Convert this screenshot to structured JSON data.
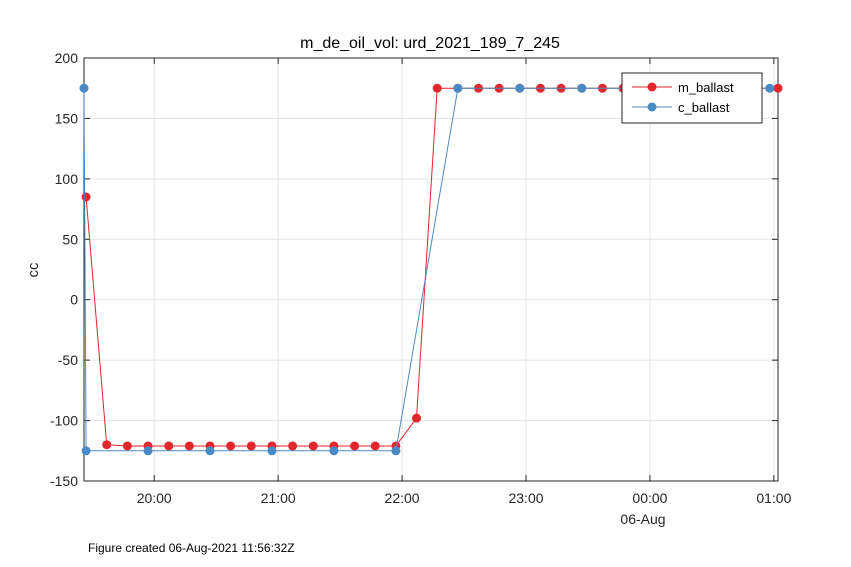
{
  "chart_data": {
    "type": "line",
    "title": "m_de_oil_vol: urd_2021_189_7_245",
    "ylabel": "cc",
    "xlabel": "",
    "ylim": [
      -150,
      200
    ],
    "yticks": [
      -150,
      -100,
      -50,
      0,
      50,
      100,
      150,
      200
    ],
    "xlim": [
      "19:26",
      "01:02"
    ],
    "xticks": [
      {
        "time": "20:00",
        "label": "20:00"
      },
      {
        "time": "21:00",
        "label": "21:00"
      },
      {
        "time": "22:00",
        "label": "22:00"
      },
      {
        "time": "23:00",
        "label": "23:00"
      },
      {
        "time": "00:00",
        "label": "00:00"
      },
      {
        "time": "01:00",
        "label": "01:00"
      }
    ],
    "date_label": "06-Aug",
    "grid": true,
    "legend_position": "top-right",
    "series": [
      {
        "name": "m_ballast",
        "color": "#e3262b",
        "points": [
          [
            "19:27",
            85
          ],
          [
            "19:37",
            -120
          ],
          [
            "19:47",
            -121
          ],
          [
            "19:57",
            -121
          ],
          [
            "20:07",
            -121
          ],
          [
            "20:17",
            -121
          ],
          [
            "20:27",
            -121
          ],
          [
            "20:37",
            -121
          ],
          [
            "20:47",
            -121
          ],
          [
            "20:57",
            -121
          ],
          [
            "21:07",
            -121
          ],
          [
            "21:17",
            -121
          ],
          [
            "21:27",
            -121
          ],
          [
            "21:37",
            -121
          ],
          [
            "21:47",
            -121
          ],
          [
            "21:57",
            -121
          ],
          [
            "22:07",
            -98
          ],
          [
            "22:17",
            175
          ],
          [
            "22:27",
            175
          ],
          [
            "22:37",
            175
          ],
          [
            "22:47",
            175
          ],
          [
            "22:57",
            175
          ],
          [
            "23:07",
            175
          ],
          [
            "23:17",
            175
          ],
          [
            "23:27",
            175
          ],
          [
            "23:37",
            175
          ],
          [
            "23:47",
            175
          ],
          [
            "01:02",
            175
          ]
        ]
      },
      {
        "name": "c_ballast",
        "color": "#4a8ac4",
        "points": [
          [
            "19:26",
            175
          ],
          [
            "19:27",
            -125
          ],
          [
            "19:57",
            -125
          ],
          [
            "20:27",
            -125
          ],
          [
            "20:57",
            -125
          ],
          [
            "21:27",
            -125
          ],
          [
            "21:57",
            -125
          ],
          [
            "22:27",
            175
          ],
          [
            "22:57",
            175
          ],
          [
            "23:27",
            175
          ],
          [
            "00:58",
            175
          ]
        ]
      }
    ]
  },
  "footer": "Figure created 06-Aug-2021 11:56:32Z"
}
